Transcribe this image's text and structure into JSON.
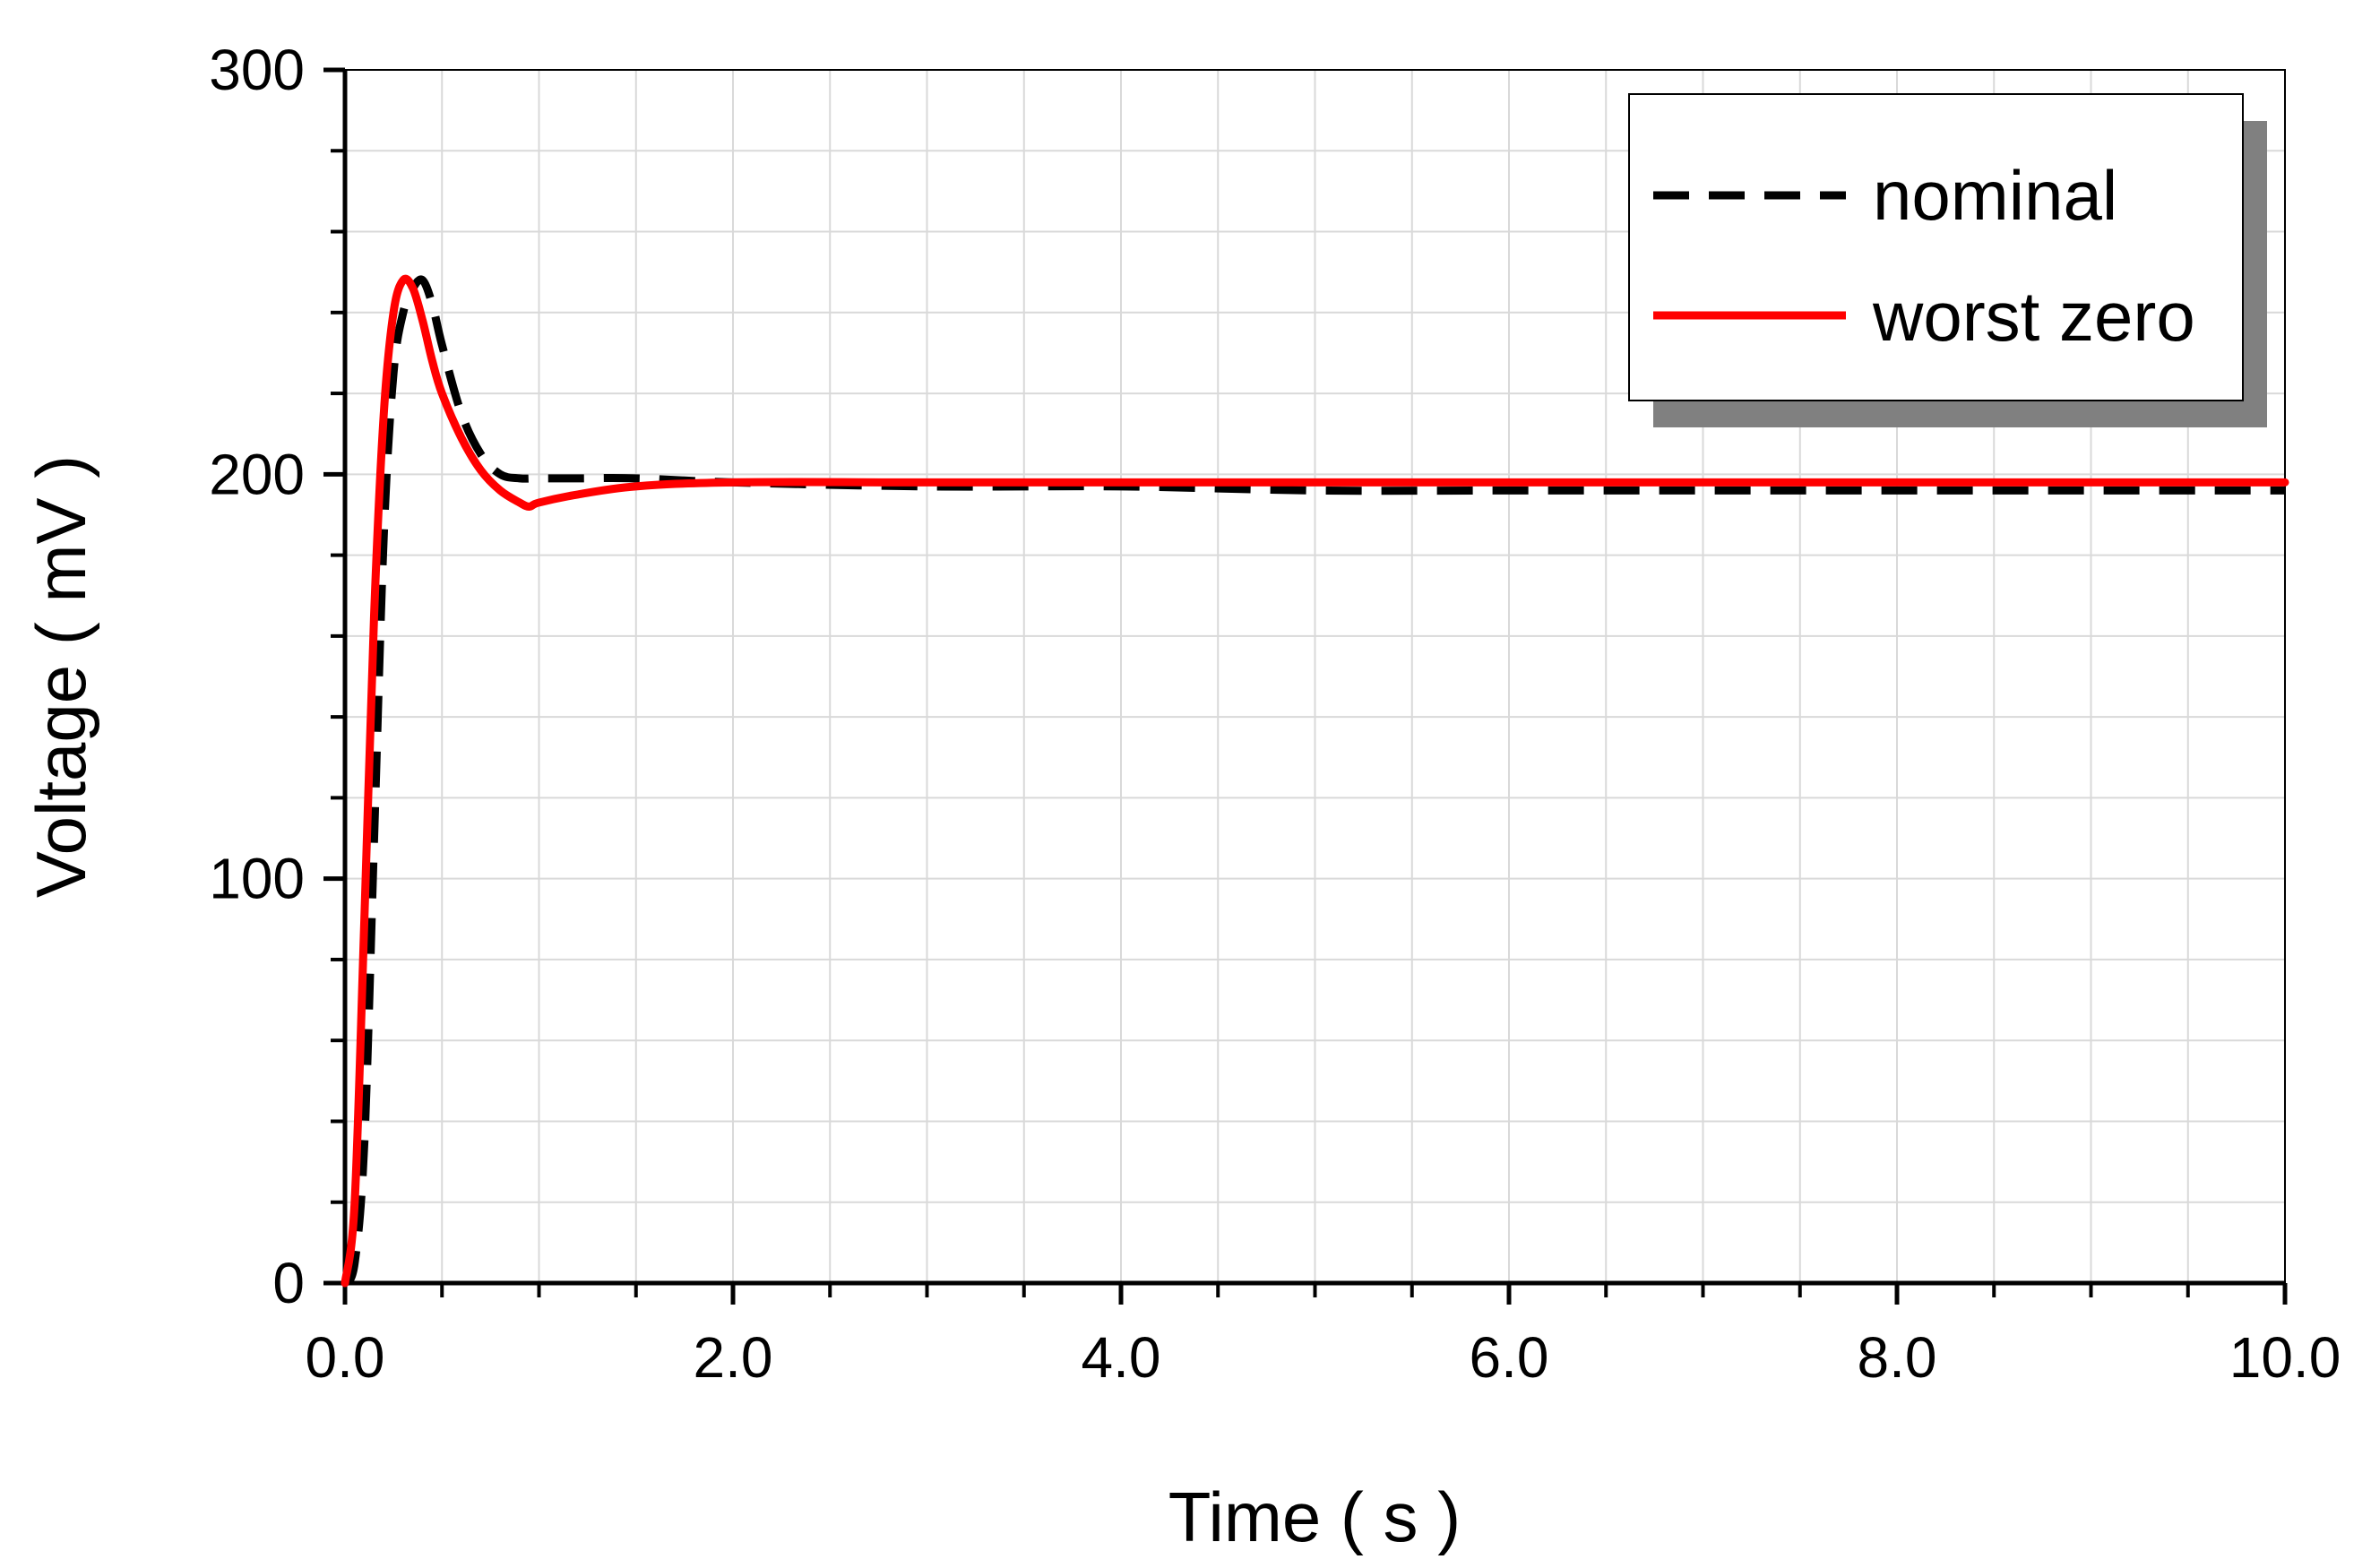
{
  "chart_data": {
    "type": "line",
    "title": "",
    "xlabel": "Time ( s )",
    "ylabel": "Voltage ( mV )",
    "xlim": [
      0,
      10
    ],
    "ylim": [
      0,
      300
    ],
    "x_ticks": [
      "0.0",
      "2.0",
      "4.0",
      "6.0",
      "8.0",
      "10.0"
    ],
    "y_ticks": [
      "0",
      "100",
      "200",
      "300"
    ],
    "grid": true,
    "legend_position": "top-right",
    "series": [
      {
        "name": "nominal",
        "style": "dashed",
        "color": "#000000",
        "x": [
          0,
          0.05,
          0.1,
          0.15,
          0.2,
          0.25,
          0.3,
          0.35,
          0.4,
          0.45,
          0.5,
          0.6,
          0.7,
          0.8,
          0.9,
          1.0,
          1.2,
          1.5,
          2.0,
          3.0,
          4.0,
          5.0,
          6.0,
          7.0,
          8.0,
          9.0,
          10.0
        ],
        "y": [
          0,
          5,
          35,
          110,
          185,
          225,
          240,
          246,
          248,
          242,
          232,
          215,
          205,
          200,
          199,
          199,
          199,
          199,
          198,
          197,
          197,
          196,
          196,
          196,
          196,
          196,
          196
        ]
      },
      {
        "name": "worst zero",
        "style": "solid",
        "color": "#ff0000",
        "x": [
          0,
          0.05,
          0.1,
          0.15,
          0.2,
          0.25,
          0.3,
          0.35,
          0.4,
          0.45,
          0.5,
          0.6,
          0.7,
          0.8,
          0.9,
          0.95,
          1.0,
          1.2,
          1.5,
          2.0,
          3.0,
          4.0,
          5.0,
          6.0,
          7.0,
          8.0,
          9.0,
          10.0
        ],
        "y": [
          0,
          20,
          90,
          165,
          215,
          240,
          248,
          246,
          238,
          228,
          220,
          209,
          201,
          196,
          193,
          192,
          193,
          195,
          197,
          198,
          198,
          198,
          198,
          198,
          198,
          198,
          198,
          198
        ]
      }
    ]
  }
}
